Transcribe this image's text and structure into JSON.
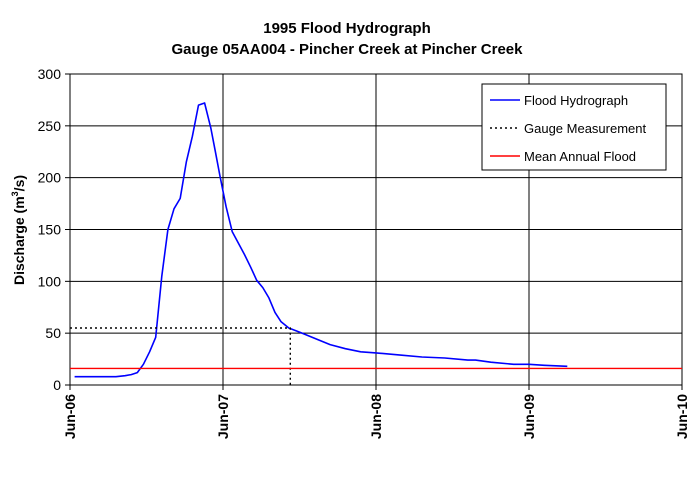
{
  "chart_data": {
    "type": "line",
    "title": "1995 Flood Hydrograph",
    "subtitle": "Gauge 05AA004 - Pincher Creek at Pincher Creek",
    "xlabel": "",
    "ylabel_main": "Discharge (m",
    "ylabel_sup": "3",
    "ylabel_tail": "/s)",
    "x_ticks": [
      "Jun-06",
      "Jun-07",
      "Jun-08",
      "Jun-09",
      "Jun-10"
    ],
    "x_range_days": [
      6,
      10
    ],
    "ylim": [
      0,
      300
    ],
    "y_ticks": [
      0,
      50,
      100,
      150,
      200,
      250,
      300
    ],
    "grid": true,
    "legend_position": "top-right",
    "series": [
      {
        "name": "Flood Hydrograph",
        "color": "#0000ff",
        "style": "solid",
        "x": [
          6.03,
          6.2,
          6.3,
          6.36,
          6.4,
          6.44,
          6.48,
          6.52,
          6.56,
          6.6,
          6.64,
          6.68,
          6.72,
          6.76,
          6.8,
          6.84,
          6.88,
          6.92,
          6.95,
          6.98,
          7.02,
          7.06,
          7.1,
          7.14,
          7.18,
          7.22,
          7.26,
          7.3,
          7.34,
          7.38,
          7.43,
          7.5,
          7.6,
          7.7,
          7.8,
          7.9,
          8.0,
          8.15,
          8.3,
          8.45,
          8.6,
          8.65,
          8.75,
          8.9,
          9.0,
          9.1,
          9.25
        ],
        "y": [
          8,
          8,
          8,
          9,
          10,
          12,
          20,
          32,
          46,
          105,
          150,
          170,
          180,
          215,
          240,
          270,
          272,
          248,
          225,
          202,
          172,
          148,
          137,
          126,
          114,
          101,
          94,
          84,
          70,
          61,
          55,
          51,
          45,
          39,
          35,
          32,
          31,
          29,
          27,
          26,
          24,
          24,
          22,
          20,
          20,
          19,
          18
        ]
      },
      {
        "name": "Gauge Measurement",
        "color": "#000000",
        "style": "dotted",
        "x": [
          6.0,
          7.44,
          7.44
        ],
        "y": [
          55,
          55,
          0
        ]
      },
      {
        "name": "Mean Annual Flood",
        "color": "#ff0000",
        "style": "solid",
        "x": [
          6.0,
          10.0
        ],
        "y": [
          16,
          16
        ]
      }
    ]
  }
}
